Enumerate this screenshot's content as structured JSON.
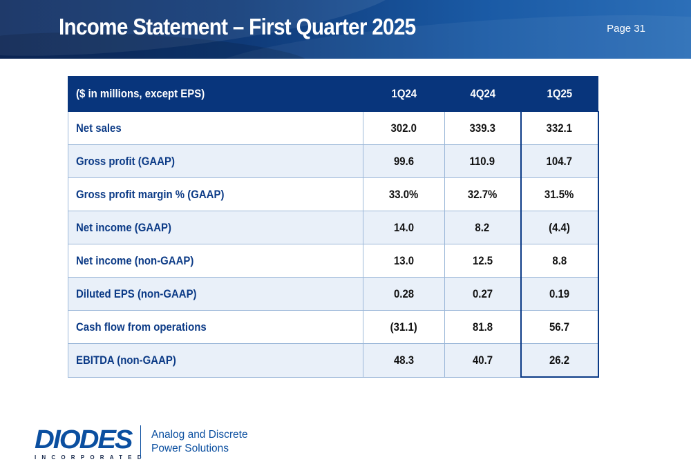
{
  "header": {
    "title": "Income Statement – First Quarter 2025",
    "page_label": "Page 31"
  },
  "table": {
    "columns": [
      "($ in millions, except EPS)",
      "1Q24",
      "4Q24",
      "1Q25"
    ],
    "rows": [
      {
        "label": "Net sales",
        "values": [
          "302.0",
          "339.3",
          "332.1"
        ]
      },
      {
        "label": "Gross profit (GAAP)",
        "values": [
          "99.6",
          "110.9",
          "104.7"
        ]
      },
      {
        "label": "Gross profit margin % (GAAP)",
        "values": [
          "33.0%",
          "32.7%",
          "31.5%"
        ]
      },
      {
        "label": "Net income (GAAP)",
        "values": [
          "14.0",
          "8.2",
          "(4.4)"
        ]
      },
      {
        "label": "Net income (non-GAAP)",
        "values": [
          "13.0",
          "12.5",
          "8.8"
        ]
      },
      {
        "label": "Diluted EPS (non-GAAP)",
        "values": [
          "0.28",
          "0.27",
          "0.19"
        ]
      },
      {
        "label": "Cash flow from operations",
        "values": [
          "(31.1)",
          "81.8",
          "56.7"
        ]
      },
      {
        "label": "EBITDA (non-GAAP)",
        "values": [
          "48.3",
          "40.7",
          "26.2"
        ]
      }
    ]
  },
  "footer": {
    "logo_text": "DIODES",
    "logo_subtext": "INCORPORATED",
    "tagline_line1": "Analog and Discrete",
    "tagline_line2": "Power Solutions"
  },
  "colors": {
    "header_bg": "#0f3a78",
    "table_header_bg": "#08357c",
    "row_label": "#0b3a86",
    "row_alt_bg": "#e9f0f9",
    "brand_blue": "#0b4fa0"
  }
}
